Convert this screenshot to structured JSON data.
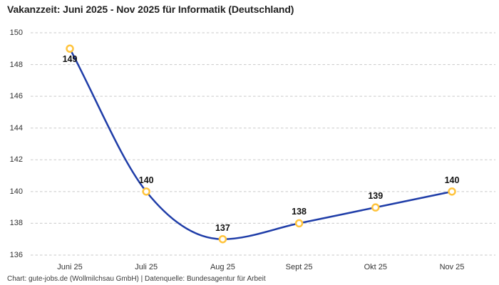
{
  "chart_data": {
    "type": "line",
    "title": "Vakanzzeit: Juni 2025 - Nov 2025 für Informatik (Deutschland)",
    "categories": [
      "Juni 25",
      "Juli 25",
      "Aug 25",
      "Sept 25",
      "Okt 25",
      "Nov 25"
    ],
    "values": [
      149,
      140,
      137,
      138,
      139,
      140
    ],
    "data_labels": [
      "149",
      "140",
      "137",
      "138",
      "139",
      "140"
    ],
    "yticks": [
      "136",
      "138",
      "140",
      "142",
      "144",
      "146",
      "148",
      "150"
    ],
    "ylim": [
      136,
      150
    ],
    "xlabel": "",
    "ylabel": "",
    "grid": "horizontal-dashed",
    "legend": "none",
    "line_interpolation": "monotone-spline",
    "colors": {
      "line": "#1f3da8",
      "marker_stroke": "#ffc43d",
      "marker_fill": "#ffffff",
      "grid": "#c9c9c9",
      "title": "#222222",
      "axis_text": "#333333",
      "data_label": "#111111",
      "background": "#ffffff"
    }
  },
  "footer": {
    "text": "Chart: gute-jobs.de (Wollmilchsau GmbH) | Datenquelle: Bundesagentur für Arbeit"
  }
}
